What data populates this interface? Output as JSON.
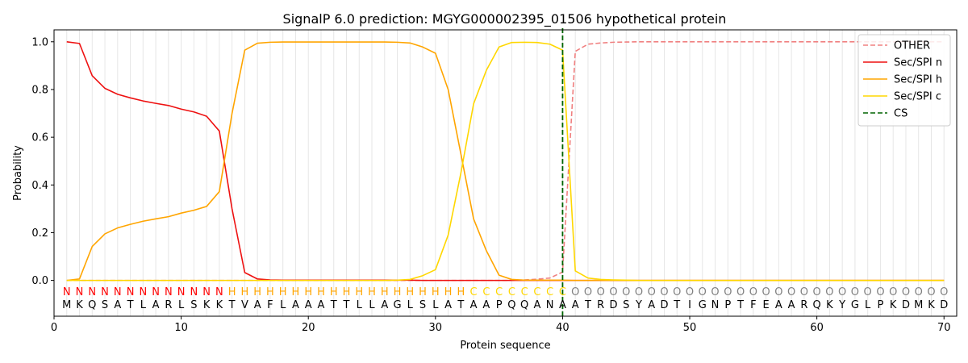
{
  "chart_data": {
    "type": "line",
    "title": "SignalP 6.0 prediction: MGYG000002395_01506 hypothetical protein",
    "xlabel": "Protein sequence",
    "ylabel": "Probability",
    "xlim": [
      0,
      71
    ],
    "ylim": [
      -0.15,
      1.05
    ],
    "xticks": [
      0,
      10,
      20,
      30,
      40,
      50,
      60,
      70
    ],
    "yticks": [
      0.0,
      0.2,
      0.4,
      0.6,
      0.8,
      1.0
    ],
    "ytick_labels": [
      "0.0",
      "0.2",
      "0.4",
      "0.6",
      "0.8",
      "1.0"
    ],
    "grid": "vertical lines at each residue",
    "legend_position": "top-right",
    "sequence": [
      "M",
      "K",
      "Q",
      "S",
      "A",
      "T",
      "L",
      "A",
      "R",
      "L",
      "S",
      "K",
      "K",
      "T",
      "V",
      "A",
      "F",
      "L",
      "A",
      "A",
      "A",
      "T",
      "T",
      "L",
      "L",
      "A",
      "G",
      "L",
      "S",
      "L",
      "A",
      "T",
      "A",
      "A",
      "P",
      "Q",
      "Q",
      "A",
      "N",
      "A",
      "A",
      "T",
      "R",
      "D",
      "S",
      "Y",
      "A",
      "D",
      "T",
      "I",
      "G",
      "N",
      "P",
      "T",
      "F",
      "E",
      "A",
      "A",
      "R",
      "Q",
      "K",
      "Y",
      "G",
      "L",
      "P",
      "K",
      "D",
      "M",
      "K",
      "D"
    ],
    "labels": [
      "N",
      "N",
      "N",
      "N",
      "N",
      "N",
      "N",
      "N",
      "N",
      "N",
      "N",
      "N",
      "N",
      "H",
      "H",
      "H",
      "H",
      "H",
      "H",
      "H",
      "H",
      "H",
      "H",
      "H",
      "H",
      "H",
      "H",
      "H",
      "H",
      "H",
      "H",
      "H",
      "C",
      "C",
      "C",
      "C",
      "C",
      "C",
      "C",
      "C",
      "O",
      "O",
      "O",
      "O",
      "O",
      "O",
      "O",
      "O",
      "O",
      "O",
      "O",
      "O",
      "O",
      "O",
      "O",
      "O",
      "O",
      "O",
      "O",
      "O",
      "O",
      "O",
      "O",
      "O",
      "O",
      "O",
      "O",
      "O",
      "O",
      "O"
    ],
    "label_colors": {
      "N": "#ff0000",
      "H": "#ffa500",
      "C": "#ffd700",
      "O": "#808080"
    },
    "cleavage_site": 40,
    "series": [
      {
        "name": "OTHER",
        "color": "#f08080",
        "dash": "dashed",
        "x": [
          1,
          2,
          3,
          4,
          5,
          6,
          7,
          8,
          9,
          10,
          11,
          12,
          13,
          14,
          15,
          16,
          17,
          18,
          19,
          20,
          21,
          22,
          23,
          24,
          25,
          26,
          27,
          28,
          29,
          30,
          31,
          32,
          33,
          34,
          35,
          36,
          37,
          38,
          39,
          40,
          41,
          42,
          43,
          44,
          45,
          46,
          47,
          48,
          49,
          50,
          51,
          52,
          53,
          54,
          55,
          56,
          57,
          58,
          59,
          60,
          61,
          62,
          63,
          64,
          65,
          66,
          67,
          68,
          69,
          70
        ],
        "values": [
          0,
          0,
          0,
          0,
          0,
          0,
          0,
          0,
          0,
          0,
          0,
          0,
          0,
          0,
          0,
          0,
          0,
          0,
          0,
          0,
          0,
          0,
          0,
          0,
          0,
          0,
          0,
          0,
          0,
          0,
          0,
          0,
          0,
          0,
          0,
          0,
          0.002,
          0.005,
          0.01,
          0.035,
          0.96,
          0.99,
          0.995,
          0.998,
          0.999,
          1,
          1,
          1,
          1,
          1,
          1,
          1,
          1,
          1,
          1,
          1,
          1,
          1,
          1,
          1,
          1,
          1,
          1,
          1,
          1,
          1,
          1,
          1,
          1,
          1
        ]
      },
      {
        "name": "Sec/SPI n",
        "color": "#ee1111",
        "dash": "solid",
        "x": [
          1,
          2,
          3,
          4,
          5,
          6,
          7,
          8,
          9,
          10,
          11,
          12,
          13,
          14,
          15,
          16,
          17,
          18,
          19,
          20,
          21,
          22,
          23,
          24,
          25,
          26,
          27,
          28,
          29,
          30,
          31,
          32,
          33,
          34,
          35,
          36,
          37,
          38,
          39,
          40,
          41,
          42,
          43,
          44,
          45,
          46,
          47,
          48,
          49,
          50,
          51,
          52,
          53,
          54,
          55,
          56,
          57,
          58,
          59,
          60,
          61,
          62,
          63,
          64,
          65,
          66,
          67,
          68,
          69,
          70
        ],
        "values": [
          1.0,
          0.993,
          0.858,
          0.805,
          0.78,
          0.765,
          0.752,
          0.742,
          0.733,
          0.718,
          0.706,
          0.688,
          0.626,
          0.3,
          0.033,
          0.006,
          0.002,
          0.001,
          0.001,
          0.001,
          0.001,
          0.001,
          0.001,
          0.001,
          0.001,
          0.001,
          0.001,
          0.001,
          0,
          0,
          0,
          0,
          0,
          0,
          0,
          0,
          0,
          0,
          0,
          0,
          0,
          0,
          0,
          0,
          0,
          0,
          0,
          0,
          0,
          0,
          0,
          0,
          0,
          0,
          0,
          0,
          0,
          0,
          0,
          0,
          0,
          0,
          0,
          0,
          0,
          0,
          0,
          0,
          0,
          0
        ]
      },
      {
        "name": "Sec/SPI h",
        "color": "#ffa500",
        "dash": "solid",
        "x": [
          1,
          2,
          3,
          4,
          5,
          6,
          7,
          8,
          9,
          10,
          11,
          12,
          13,
          14,
          15,
          16,
          17,
          18,
          19,
          20,
          21,
          22,
          23,
          24,
          25,
          26,
          27,
          28,
          29,
          30,
          31,
          32,
          33,
          34,
          35,
          36,
          37,
          38,
          39,
          40,
          41,
          42,
          43,
          44,
          45,
          46,
          47,
          48,
          49,
          50,
          51,
          52,
          53,
          54,
          55,
          56,
          57,
          58,
          59,
          60,
          61,
          62,
          63,
          64,
          65,
          66,
          67,
          68,
          69,
          70
        ],
        "values": [
          0,
          0.006,
          0.142,
          0.195,
          0.22,
          0.235,
          0.248,
          0.258,
          0.267,
          0.282,
          0.294,
          0.31,
          0.372,
          0.7,
          0.965,
          0.994,
          0.998,
          0.999,
          0.999,
          0.999,
          0.999,
          0.999,
          0.999,
          0.999,
          0.999,
          0.999,
          0.998,
          0.995,
          0.978,
          0.952,
          0.8,
          0.53,
          0.258,
          0.125,
          0.022,
          0.004,
          0.001,
          0.001,
          0.001,
          0.001,
          0,
          0,
          0,
          0,
          0,
          0,
          0,
          0,
          0,
          0,
          0,
          0,
          0,
          0,
          0,
          0,
          0,
          0,
          0,
          0,
          0,
          0,
          0,
          0,
          0,
          0,
          0,
          0,
          0,
          0
        ]
      },
      {
        "name": "Sec/SPI c",
        "color": "#ffd700",
        "dash": "solid",
        "x": [
          1,
          2,
          3,
          4,
          5,
          6,
          7,
          8,
          9,
          10,
          11,
          12,
          13,
          14,
          15,
          16,
          17,
          18,
          19,
          20,
          21,
          22,
          23,
          24,
          25,
          26,
          27,
          28,
          29,
          30,
          31,
          32,
          33,
          34,
          35,
          36,
          37,
          38,
          39,
          40,
          41,
          42,
          43,
          44,
          45,
          46,
          47,
          48,
          49,
          50,
          51,
          52,
          53,
          54,
          55,
          56,
          57,
          58,
          59,
          60,
          61,
          62,
          63,
          64,
          65,
          66,
          67,
          68,
          69,
          70
        ],
        "values": [
          0,
          0,
          0,
          0,
          0,
          0,
          0,
          0,
          0,
          0,
          0,
          0,
          0,
          0,
          0,
          0,
          0,
          0,
          0,
          0,
          0,
          0,
          0,
          0,
          0,
          0,
          0.001,
          0.004,
          0.02,
          0.045,
          0.19,
          0.45,
          0.74,
          0.88,
          0.978,
          0.997,
          0.998,
          0.997,
          0.99,
          0.965,
          0.04,
          0.01,
          0.004,
          0.002,
          0.001,
          0,
          0,
          0,
          0,
          0,
          0,
          0,
          0,
          0,
          0,
          0,
          0,
          0,
          0,
          0,
          0,
          0,
          0,
          0,
          0,
          0,
          0,
          0,
          0,
          0
        ]
      },
      {
        "name": "CS",
        "color": "#006400",
        "dash": "dashed"
      }
    ]
  }
}
